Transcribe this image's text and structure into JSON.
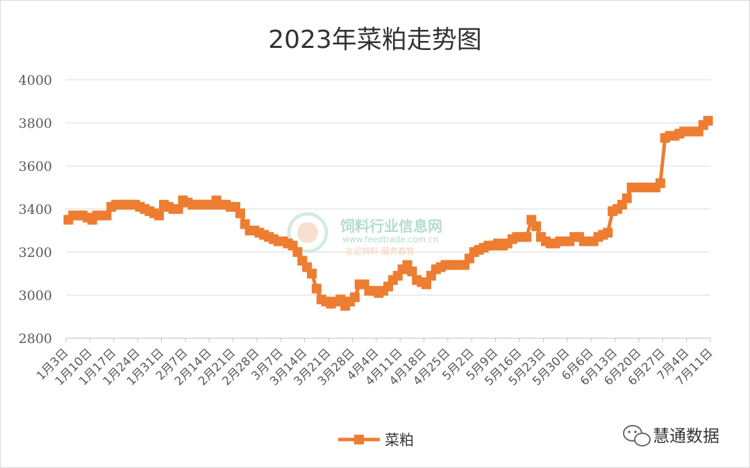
{
  "chart_data": {
    "type": "line",
    "title": "2023年菜粕走势图",
    "xlabel": "",
    "ylabel": "",
    "ylim": [
      2800,
      4000
    ],
    "yticks": [
      2800,
      3000,
      3200,
      3400,
      3600,
      3800,
      4000
    ],
    "grid": true,
    "legend_position": "bottom",
    "series": [
      {
        "name": "菜粕",
        "color": "#ed7d31",
        "values": [
          3350,
          3370,
          3370,
          3370,
          3360,
          3350,
          3370,
          3370,
          3370,
          3410,
          3420,
          3420,
          3420,
          3420,
          3420,
          3410,
          3400,
          3390,
          3380,
          3370,
          3420,
          3410,
          3400,
          3400,
          3440,
          3430,
          3420,
          3420,
          3420,
          3420,
          3420,
          3440,
          3420,
          3420,
          3410,
          3410,
          3380,
          3330,
          3300,
          3300,
          3290,
          3280,
          3270,
          3260,
          3250,
          3250,
          3240,
          3230,
          3200,
          3160,
          3130,
          3100,
          3030,
          2980,
          2970,
          2960,
          2970,
          2980,
          2950,
          2970,
          2990,
          3050,
          3050,
          3020,
          3020,
          3010,
          3020,
          3040,
          3070,
          3090,
          3120,
          3140,
          3110,
          3070,
          3060,
          3050,
          3090,
          3120,
          3130,
          3140,
          3140,
          3140,
          3140,
          3140,
          3170,
          3200,
          3210,
          3220,
          3230,
          3230,
          3240,
          3230,
          3240,
          3260,
          3270,
          3270,
          3270,
          3350,
          3320,
          3270,
          3250,
          3240,
          3240,
          3250,
          3250,
          3250,
          3270,
          3270,
          3250,
          3250,
          3250,
          3270,
          3280,
          3290,
          3390,
          3400,
          3420,
          3450,
          3500,
          3500,
          3500,
          3500,
          3500,
          3500,
          3520,
          3730,
          3740,
          3740,
          3750,
          3760,
          3760,
          3760,
          3760,
          3790,
          3810
        ]
      }
    ],
    "x_tick_labels": [
      "1月3日",
      "1月10日",
      "1月17日",
      "1月24日",
      "1月31日",
      "2月7日",
      "2月14日",
      "2月21日",
      "2月28日",
      "3月7日",
      "3月14日",
      "3月21日",
      "3月28日",
      "4月4日",
      "4月11日",
      "4月18日",
      "4月25日",
      "5月2日",
      "5月9日",
      "5月16日",
      "5月23日",
      "5月30日",
      "6月6日",
      "6月13日",
      "6月20日",
      "6月27日",
      "7月4日",
      "7月11日"
    ]
  },
  "watermark": {
    "name": "饲料行业信息网",
    "url": "www.feedtrade.com.cn",
    "slogan": "立足饲料    服务畜牧"
  },
  "source": {
    "icon": "wechat-icon",
    "text": "慧通数据"
  }
}
